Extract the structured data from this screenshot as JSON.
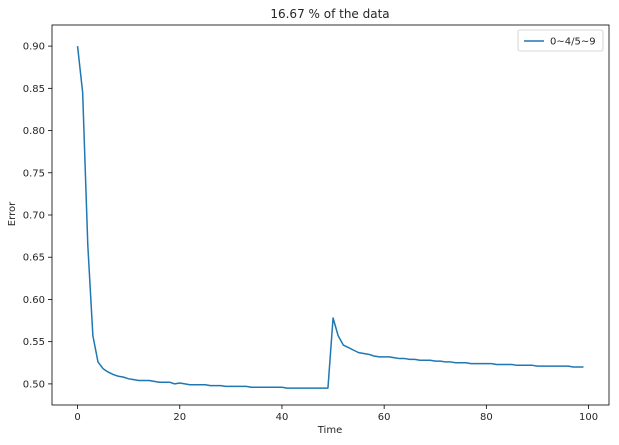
{
  "chart_data": {
    "type": "line",
    "title": "16.67 % of the data",
    "xlabel": "Time",
    "ylabel": "Error",
    "xlim": [
      -5,
      104
    ],
    "ylim": [
      0.475,
      0.925
    ],
    "xticks": [
      0,
      20,
      40,
      60,
      80,
      100
    ],
    "yticks": [
      0.5,
      0.55,
      0.6,
      0.65,
      0.7,
      0.75,
      0.8,
      0.85,
      0.9
    ],
    "xtick_labels": [
      "0",
      "20",
      "40",
      "60",
      "80",
      "100"
    ],
    "ytick_labels": [
      "0.50",
      "0.55",
      "0.60",
      "0.65",
      "0.70",
      "0.75",
      "0.80",
      "0.85",
      "0.90"
    ],
    "grid": false,
    "legend_position": "top-right",
    "series": [
      {
        "name": "0~4/5~9",
        "color": "#1f77b4",
        "x": [
          0,
          1,
          2,
          3,
          4,
          5,
          6,
          7,
          8,
          9,
          10,
          11,
          12,
          13,
          14,
          15,
          16,
          17,
          18,
          19,
          20,
          21,
          22,
          23,
          24,
          25,
          26,
          27,
          28,
          29,
          30,
          31,
          32,
          33,
          34,
          35,
          36,
          37,
          38,
          39,
          40,
          41,
          42,
          43,
          44,
          45,
          46,
          47,
          48,
          49,
          50,
          51,
          52,
          53,
          54,
          55,
          56,
          57,
          58,
          59,
          60,
          61,
          62,
          63,
          64,
          65,
          66,
          67,
          68,
          69,
          70,
          71,
          72,
          73,
          74,
          75,
          76,
          77,
          78,
          79,
          80,
          81,
          82,
          83,
          84,
          85,
          86,
          87,
          88,
          89,
          90,
          91,
          92,
          93,
          94,
          95,
          96,
          97,
          98,
          99
        ],
        "y": [
          0.9,
          0.845,
          0.665,
          0.557,
          0.526,
          0.518,
          0.514,
          0.511,
          0.509,
          0.508,
          0.506,
          0.505,
          0.504,
          0.504,
          0.504,
          0.503,
          0.502,
          0.502,
          0.502,
          0.5,
          0.501,
          0.5,
          0.499,
          0.499,
          0.499,
          0.499,
          0.498,
          0.498,
          0.498,
          0.497,
          0.497,
          0.497,
          0.497,
          0.497,
          0.496,
          0.496,
          0.496,
          0.496,
          0.496,
          0.496,
          0.496,
          0.495,
          0.495,
          0.495,
          0.495,
          0.495,
          0.495,
          0.495,
          0.495,
          0.495,
          0.578,
          0.557,
          0.546,
          0.543,
          0.54,
          0.537,
          0.536,
          0.535,
          0.533,
          0.532,
          0.532,
          0.532,
          0.531,
          0.53,
          0.53,
          0.529,
          0.529,
          0.528,
          0.528,
          0.528,
          0.527,
          0.527,
          0.526,
          0.526,
          0.525,
          0.525,
          0.525,
          0.524,
          0.524,
          0.524,
          0.524,
          0.524,
          0.523,
          0.523,
          0.523,
          0.523,
          0.522,
          0.522,
          0.522,
          0.522,
          0.521,
          0.521,
          0.521,
          0.521,
          0.521,
          0.521,
          0.521,
          0.52,
          0.52,
          0.52
        ]
      }
    ]
  }
}
